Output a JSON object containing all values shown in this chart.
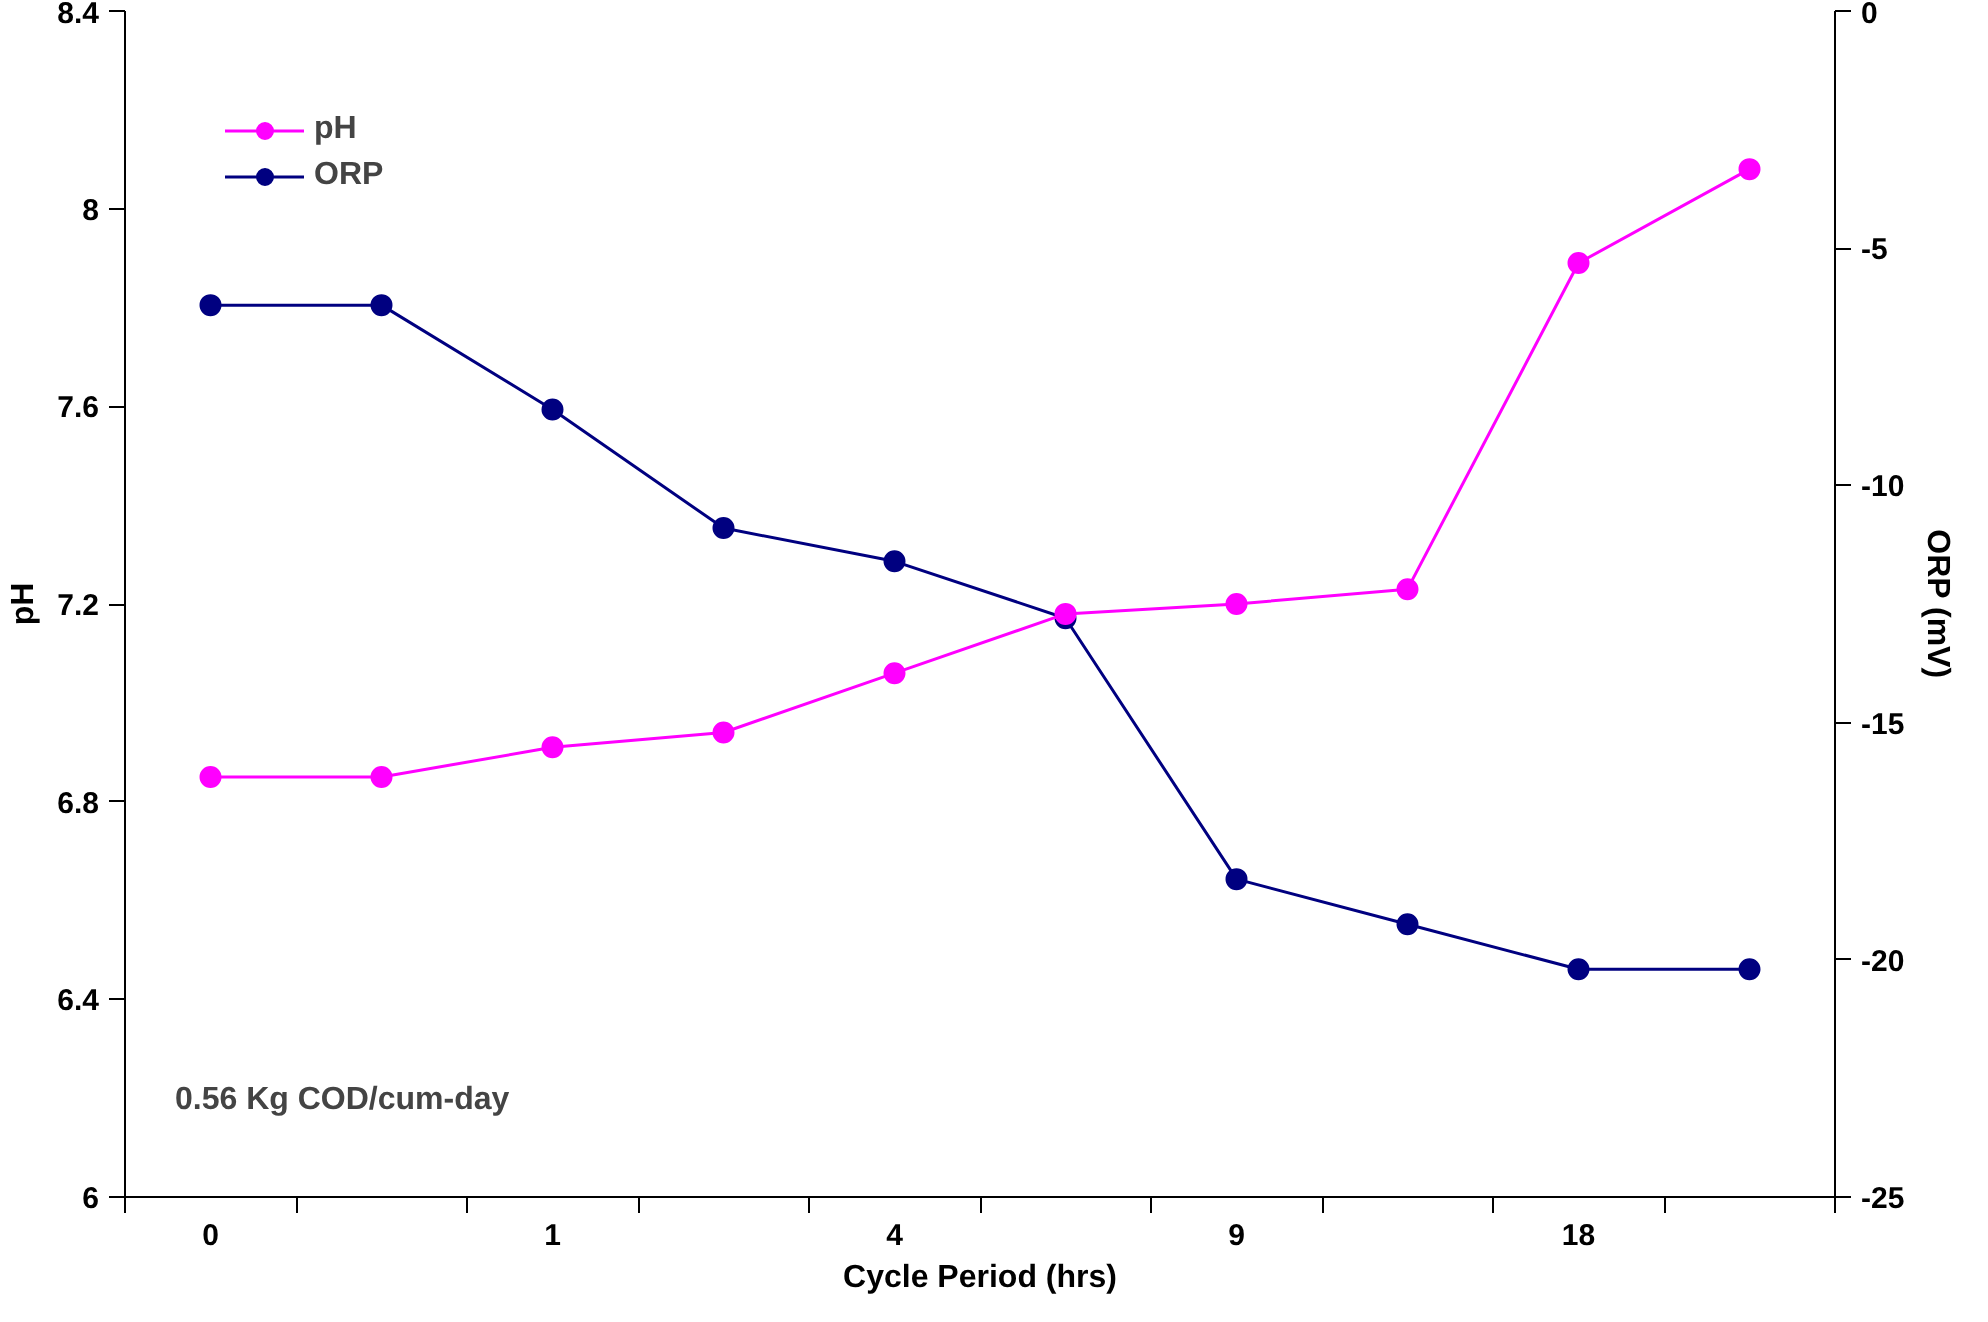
{
  "chart_data": {
    "type": "line",
    "xlabel": "Cycle Period (hrs)",
    "ylabel": "pH",
    "y2label": "ORP (mV)",
    "categories": [
      "0",
      null,
      "1",
      null,
      "4",
      null,
      "9",
      null,
      "18",
      null
    ],
    "series": [
      {
        "name": "pH",
        "color": "#ff00ff",
        "values": [
          6.85,
          6.85,
          6.91,
          6.94,
          7.06,
          7.18,
          7.2,
          7.23,
          7.89,
          8.08
        ]
      },
      {
        "name": "ORP",
        "color": "#000080",
        "axis": "y2",
        "values": [
          -6.2,
          -6.2,
          -8.4,
          -10.9,
          -11.6,
          -12.8,
          -18.3,
          -19.25,
          -20.2,
          -20.2
        ]
      }
    ],
    "ylim": [
      6,
      8.4
    ],
    "yticks": [
      6,
      6.4,
      6.8,
      7.2,
      7.6,
      8,
      8.4
    ],
    "y2lim": [
      -25,
      0
    ],
    "y2ticks": [
      -25,
      -20,
      -15,
      -10,
      -5,
      0
    ],
    "annotations": [
      "0.56 Kg COD/cum-day"
    ],
    "grid": false,
    "legend": "top left",
    "marker": "circle",
    "line_style": "solid"
  }
}
